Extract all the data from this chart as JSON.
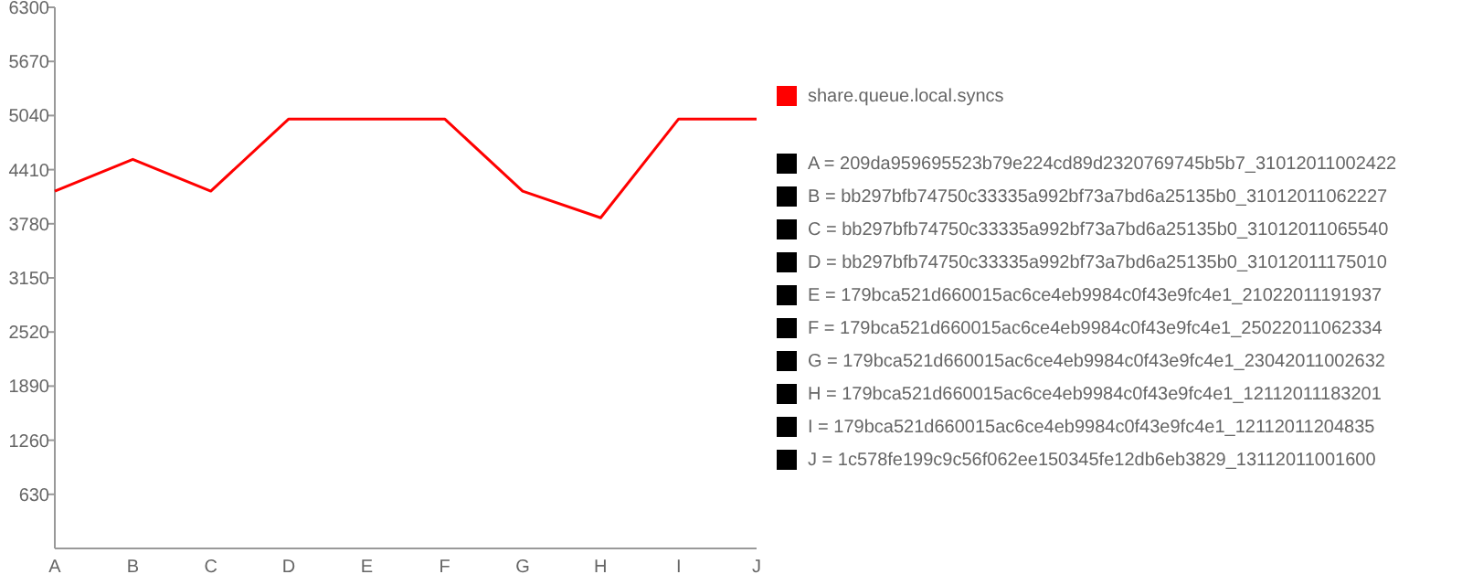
{
  "chart_data": {
    "type": "line",
    "categories": [
      "A",
      "B",
      "C",
      "D",
      "E",
      "F",
      "G",
      "H",
      "I",
      "J"
    ],
    "series": [
      {
        "name": "share.queue.local.syncs",
        "color": "#ff0000",
        "values": [
          4160,
          4530,
          4160,
          5000,
          5000,
          5000,
          4160,
          3850,
          5000,
          5000
        ]
      }
    ],
    "ylim": [
      0,
      6300
    ],
    "yticks": [
      630,
      1260,
      1890,
      2520,
      3150,
      3780,
      4410,
      5040,
      5670,
      6300
    ],
    "grid": false,
    "legend": "right",
    "marker": "none",
    "annotations": [
      "A = 209da959695523b79e224cd89d2320769745b5b7_31012011002422",
      "B = bb297bfb74750c33335a992bf73a7bd6a25135b0_31012011062227",
      "C = bb297bfb74750c33335a992bf73a7bd6a25135b0_31012011065540",
      "D = bb297bfb74750c33335a992bf73a7bd6a25135b0_31012011175010",
      "E = 179bca521d660015ac6ce4eb9984c0f43e9fc4e1_21022011191937",
      "F = 179bca521d660015ac6ce4eb9984c0f43e9fc4e1_25022011062334",
      "G = 179bca521d660015ac6ce4eb9984c0f43e9fc4e1_23042011002632",
      "H = 179bca521d660015ac6ce4eb9984c0f43e9fc4e1_12112011183201",
      "I = 179bca521d660015ac6ce4eb9984c0f43e9fc4e1_12112011204835",
      "J = 1c578fe199c9c56f062ee150345fe12db6eb3829_13112011001600"
    ]
  }
}
